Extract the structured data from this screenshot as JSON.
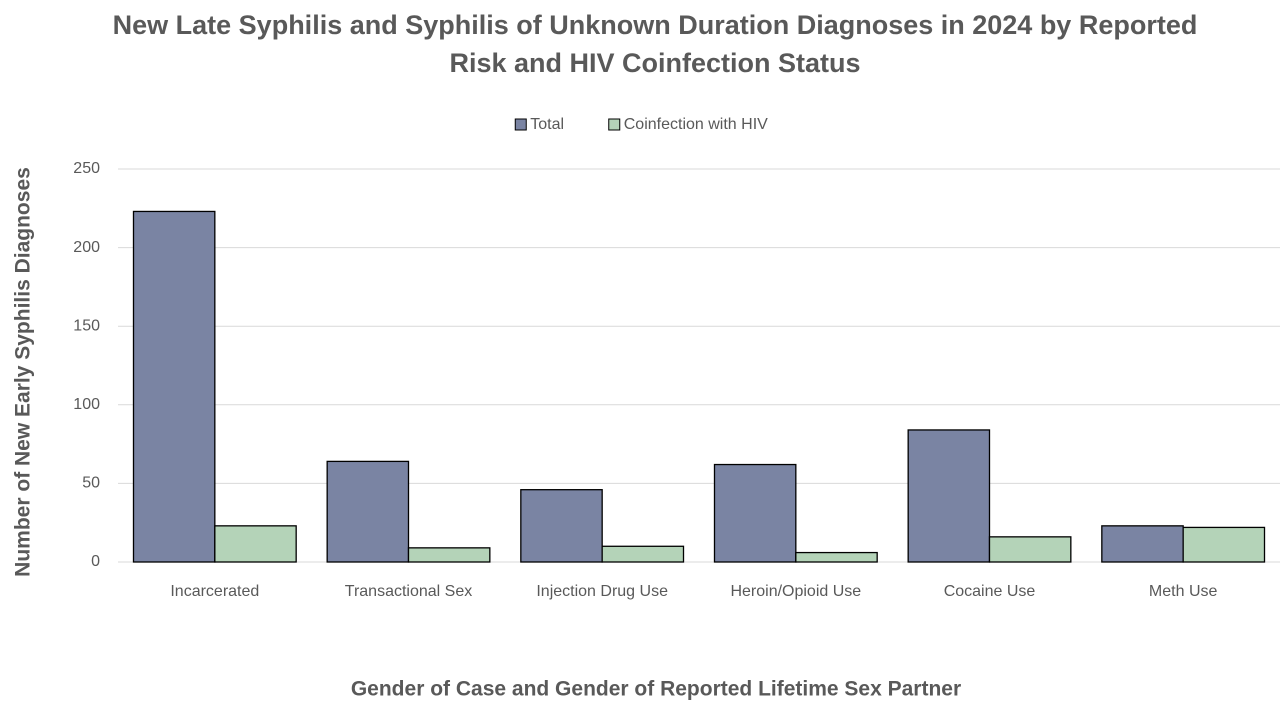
{
  "chart_data": {
    "type": "bar",
    "title": "New Late Syphilis and Syphilis of Unknown Duration Diagnoses in 2024 by Reported Risk and HIV Coinfection Status",
    "x_label": "Gender of Case and Gender of Reported Lifetime Sex Partner",
    "y_label": "Number of New Early Syphilis Diagnoses",
    "categories": [
      "Incarcerated",
      "Transactional Sex",
      "Injection Drug Use",
      "Heroin/Opioid Use",
      "Cocaine Use",
      "Meth Use"
    ],
    "series": [
      {
        "name": "Total",
        "color": "#7a84a3",
        "values": [
          223,
          64,
          46,
          62,
          84,
          23
        ]
      },
      {
        "name": "Coinfection with HIV",
        "color": "#b4d3b8",
        "values": [
          23,
          9,
          10,
          6,
          16,
          22
        ]
      }
    ],
    "ylim": [
      0,
      250
    ],
    "yticks": [
      0,
      50,
      100,
      150,
      200,
      250
    ],
    "grid": true,
    "legend": "top"
  }
}
